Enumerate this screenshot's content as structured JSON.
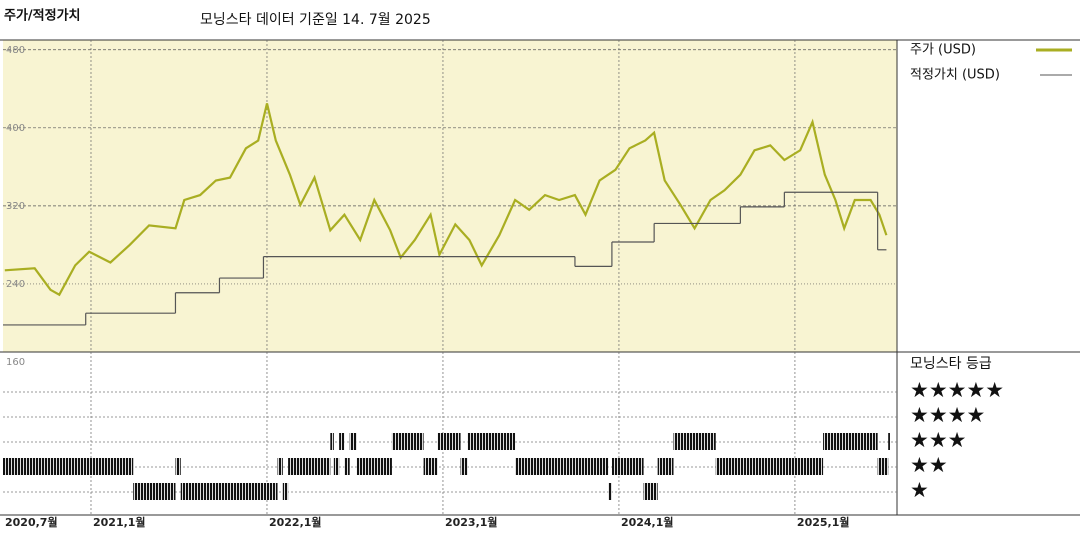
{
  "chart_data": {
    "type": "line",
    "title": "주가/적정가치",
    "subtitle": "모닝스타 데이터 기준일 14. 7월 2025",
    "xlim": [
      2020.5,
      2025.58
    ],
    "xticks": [
      {
        "value": 2020.5,
        "label": "2020,7월"
      },
      {
        "value": 2021,
        "label": "2021,1월"
      },
      {
        "value": 2022,
        "label": "2022,1월"
      },
      {
        "value": 2023,
        "label": "2023,1월"
      },
      {
        "value": 2024,
        "label": "2024,1월"
      },
      {
        "value": 2025,
        "label": "2025,1월"
      }
    ],
    "ylim": [
      160,
      490
    ],
    "yticks": [
      480,
      400,
      320,
      240,
      160
    ],
    "grid": true,
    "series": [
      {
        "name": "주가 (USD)",
        "color": "#a9ae22",
        "x": [
          2020.51,
          2020.68,
          2020.77,
          2020.82,
          2020.91,
          2020.99,
          2021.11,
          2021.22,
          2021.33,
          2021.48,
          2021.53,
          2021.62,
          2021.71,
          2021.79,
          2021.88,
          2021.95,
          2022.0,
          2022.05,
          2022.13,
          2022.19,
          2022.27,
          2022.36,
          2022.44,
          2022.53,
          2022.61,
          2022.7,
          2022.76,
          2022.84,
          2022.93,
          2022.98,
          2023.07,
          2023.15,
          2023.22,
          2023.32,
          2023.41,
          2023.49,
          2023.58,
          2023.66,
          2023.75,
          2023.81,
          2023.89,
          2023.98,
          2024.06,
          2024.15,
          2024.2,
          2024.26,
          2024.35,
          2024.43,
          2024.52,
          2024.6,
          2024.69,
          2024.77,
          2024.86,
          2024.94,
          2025.03,
          2025.1,
          2025.17,
          2025.23,
          2025.28,
          2025.34,
          2025.43,
          2025.48,
          2025.52
        ],
        "values": [
          254,
          256,
          234,
          229,
          259,
          273,
          262,
          280,
          300,
          297,
          326,
          331,
          346,
          349,
          379,
          387,
          425,
          387,
          352,
          321,
          349,
          295,
          311,
          285,
          326,
          295,
          267,
          285,
          311,
          270,
          301,
          285,
          259,
          290,
          326,
          316,
          331,
          326,
          331,
          311,
          346,
          357,
          379,
          387,
          395,
          346,
          321,
          297,
          326,
          336,
          352,
          377,
          382,
          367,
          377,
          406,
          352,
          326,
          297,
          326,
          326,
          311,
          290
        ]
      },
      {
        "name": "적정가치 (USD)",
        "color": "#555555",
        "x": [
          2020.5,
          2020.97,
          2021.48,
          2021.73,
          2021.98,
          2023.75,
          2023.96,
          2024.2,
          2024.69,
          2024.94,
          2025.47,
          2025.52
        ],
        "values": [
          198,
          210,
          231,
          246,
          268,
          258,
          283,
          302,
          319,
          334,
          275,
          275
        ]
      }
    ],
    "rating_title": "모닝스타 등급",
    "rating_labels": [
      "★★★★★",
      "★★★★",
      "★★★",
      "★★",
      "★"
    ],
    "ratings": {
      "start": [
        2020.5,
        2021.24,
        2021.48,
        2021.51,
        2022.06,
        2022.09,
        2022.12,
        2022.36,
        2022.38,
        2022.41,
        2022.44,
        2022.47,
        2022.51,
        2022.58,
        2022.71,
        2022.89,
        2022.97,
        2023.1,
        2023.14,
        2023.41,
        2023.94,
        2023.96,
        2024.14,
        2024.22,
        2024.31,
        2024.55,
        2025.16,
        2025.47,
        2025.53
      ],
      "end": [
        2021.24,
        2021.48,
        2021.51,
        2022.06,
        2022.09,
        2022.12,
        2022.36,
        2022.38,
        2022.41,
        2022.44,
        2022.47,
        2022.51,
        2022.58,
        2022.71,
        2022.89,
        2022.97,
        2023.1,
        2023.14,
        2023.41,
        2023.94,
        2023.96,
        2024.14,
        2024.22,
        2024.31,
        2024.55,
        2025.16,
        2025.47,
        2025.53,
        2025.54
      ],
      "stars": [
        2,
        1,
        2,
        1,
        2,
        1,
        2,
        3,
        2,
        3,
        2,
        3,
        2,
        2,
        3,
        2,
        3,
        2,
        3,
        2,
        1,
        2,
        1,
        2,
        3,
        2,
        3,
        2,
        3
      ]
    }
  }
}
